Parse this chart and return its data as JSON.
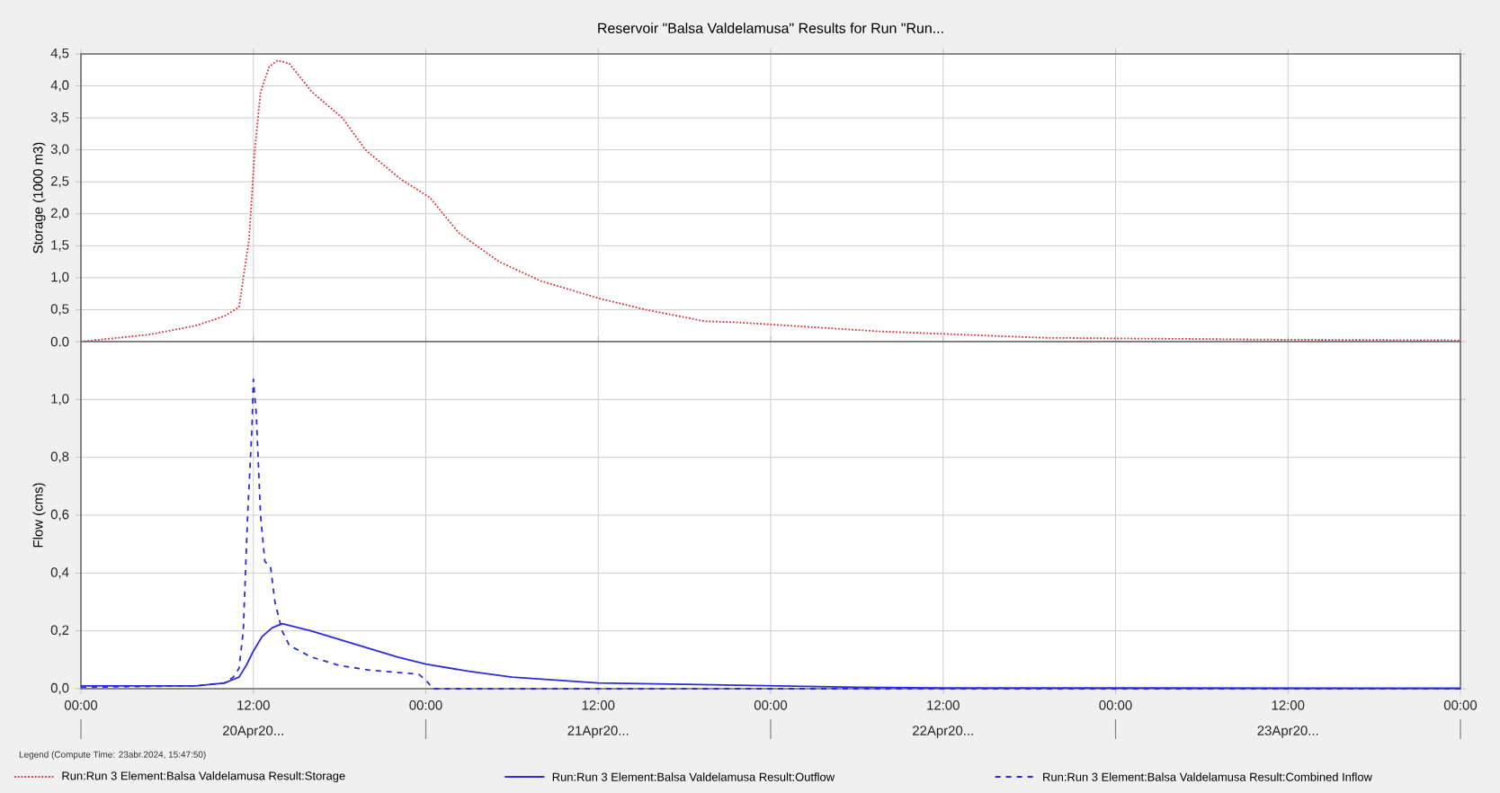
{
  "chart_data": [
    {
      "type": "line",
      "title": "Reservoir \"Balsa Valdelamusa\" Results for Run \"Run...",
      "ylabel": "Storage (1000 m3)",
      "xlim": [
        "2024-04-20T00:00",
        "2024-04-24T00:00"
      ],
      "xticks": [
        {
          "value": "2024-04-20T00:00",
          "label": null
        },
        {
          "value": "2024-04-20T12:00",
          "label": null
        },
        {
          "value": "2024-04-21T00:00",
          "label": null
        },
        {
          "value": "2024-04-21T12:00",
          "label": null
        },
        {
          "value": "2024-04-22T00:00",
          "label": null
        },
        {
          "value": "2024-04-22T12:00",
          "label": null
        },
        {
          "value": "2024-04-23T00:00",
          "label": null
        },
        {
          "value": "2024-04-23T12:00",
          "label": null
        },
        {
          "value": "2024-04-24T00:00",
          "label": null
        }
      ],
      "ylim": [
        0,
        4.5
      ],
      "yticks": [
        {
          "value": 0,
          "label": "0.0"
        },
        {
          "value": 0.5,
          "label": "0,5"
        },
        {
          "value": 1,
          "label": "1,0"
        },
        {
          "value": 1.5,
          "label": "1,5"
        },
        {
          "value": 2,
          "label": "2,0"
        },
        {
          "value": 2.5,
          "label": "2,5"
        },
        {
          "value": 3,
          "label": "3,0"
        },
        {
          "value": 3.5,
          "label": "3,5"
        },
        {
          "value": 4,
          "label": "4,0"
        },
        {
          "value": 4.5,
          "label": "4,5"
        }
      ],
      "tick_labels": "y",
      "grid": true,
      "legend": "bottom",
      "marker": "none",
      "series": [
        {
          "name": "Run:Run 3 Element:Balsa Valdelamusa Result:Storage",
          "color": "#e0303a",
          "line_style": "dotted",
          "x": [
            "2024-04-20T00:00",
            "2024-04-20T04:45",
            "2024-04-20T08:00",
            "2024-04-20T10:00",
            "2024-04-20T11:00",
            "2024-04-20T11:42",
            "2024-04-20T12:06",
            "2024-04-20T12:30",
            "2024-04-20T13:06",
            "2024-04-20T13:42",
            "2024-04-20T14:30",
            "2024-04-20T16:06",
            "2024-04-20T18:12",
            "2024-04-20T19:48",
            "2024-04-20T22:12",
            "2024-04-21T00:18",
            "2024-04-21T02:18",
            "2024-04-21T05:06",
            "2024-04-21T08:00",
            "2024-04-21T12:00",
            "2024-04-21T15:18",
            "2024-04-21T19:24",
            "2024-04-21T21:48",
            "2024-04-22T07:36",
            "2024-04-22T19:00",
            "2024-04-23T12:00",
            "2024-04-24T00:00"
          ],
          "values": [
            0,
            0.11,
            0.25,
            0.4,
            0.54,
            1.6,
            3.0,
            3.9,
            4.3,
            4.4,
            4.35,
            3.9,
            3.5,
            3.0,
            2.55,
            2.25,
            1.7,
            1.25,
            0.95,
            0.68,
            0.5,
            0.32,
            0.3,
            0.16,
            0.06,
            0.03,
            0.02
          ]
        }
      ]
    },
    {
      "type": "line",
      "ylabel": "Flow (cms)",
      "xlim": [
        "2024-04-20T00:00",
        "2024-04-24T00:00"
      ],
      "xticks": [
        {
          "value": "2024-04-20T00:00",
          "label": "00:00"
        },
        {
          "value": "2024-04-20T12:00",
          "label": "12:00"
        },
        {
          "value": "2024-04-21T00:00",
          "label": "00:00"
        },
        {
          "value": "2024-04-21T12:00",
          "label": "12:00"
        },
        {
          "value": "2024-04-22T00:00",
          "label": "00:00"
        },
        {
          "value": "2024-04-22T12:00",
          "label": "12:00"
        },
        {
          "value": "2024-04-23T00:00",
          "label": "00:00"
        },
        {
          "value": "2024-04-23T12:00",
          "label": "12:00"
        },
        {
          "value": "2024-04-24T00:00",
          "label": "00:00"
        }
      ],
      "ylim": [
        0,
        1.2
      ],
      "yticks": [
        {
          "value": 0,
          "label": "0,0"
        },
        {
          "value": 0.2,
          "label": "0,2"
        },
        {
          "value": 0.4,
          "label": "0,4"
        },
        {
          "value": 0.6,
          "label": "0,6"
        },
        {
          "value": 0.8,
          "label": "0,8"
        },
        {
          "value": 1.0,
          "label": "1,0"
        }
      ],
      "grid": true,
      "legend": "bottom",
      "marker": "none",
      "legend_title": "Legend (Compute Time: 23abr.2024, 15:47:50)",
      "annotations": [
        "20Apr20...",
        "21Apr20...",
        "22Apr20...",
        "23Apr20..."
      ],
      "series": [
        {
          "name": "Run:Run 3 Element:Balsa Valdelamusa Result:Outflow",
          "color": "#2b2be0",
          "line_style": "solid",
          "x": [
            "2024-04-20T00:00",
            "2024-04-20T08:00",
            "2024-04-20T10:00",
            "2024-04-20T11:00",
            "2024-04-20T11:30",
            "2024-04-20T12:00",
            "2024-04-20T12:36",
            "2024-04-20T13:18",
            "2024-04-20T14:00",
            "2024-04-20T16:00",
            "2024-04-20T19:00",
            "2024-04-20T22:00",
            "2024-04-21T00:00",
            "2024-04-21T03:00",
            "2024-04-21T06:00",
            "2024-04-21T12:00",
            "2024-04-21T18:00",
            "2024-04-22T00:00",
            "2024-04-22T06:00",
            "2024-04-22T12:00",
            "2024-04-24T00:00"
          ],
          "values": [
            0.01,
            0.01,
            0.02,
            0.04,
            0.08,
            0.13,
            0.18,
            0.21,
            0.225,
            0.2,
            0.155,
            0.11,
            0.085,
            0.06,
            0.04,
            0.02,
            0.015,
            0.01,
            0.005,
            0.003,
            0.002
          ]
        },
        {
          "name": "Run:Run 3 Element:Balsa Valdelamusa Result:Combined Inflow",
          "color": "#2b2be0",
          "line_style": "dashed",
          "x": [
            "2024-04-20T00:00",
            "2024-04-20T08:00",
            "2024-04-20T10:00",
            "2024-04-20T10:36",
            "2024-04-20T11:00",
            "2024-04-20T11:18",
            "2024-04-20T11:36",
            "2024-04-20T11:54",
            "2024-04-20T12:00",
            "2024-04-20T12:12",
            "2024-04-20T12:30",
            "2024-04-20T12:48",
            "2024-04-20T13:12",
            "2024-04-20T13:30",
            "2024-04-20T14:00",
            "2024-04-20T14:30",
            "2024-04-20T16:00",
            "2024-04-20T18:00",
            "2024-04-20T20:00",
            "2024-04-20T23:30",
            "2024-04-21T00:00",
            "2024-04-21T00:30",
            "2024-04-24T00:00"
          ],
          "values": [
            0.005,
            0.01,
            0.02,
            0.04,
            0.07,
            0.2,
            0.6,
            0.9,
            1.07,
            0.95,
            0.6,
            0.44,
            0.42,
            0.3,
            0.2,
            0.15,
            0.11,
            0.08,
            0.065,
            0.05,
            0.03,
            0,
            0
          ]
        }
      ]
    }
  ]
}
